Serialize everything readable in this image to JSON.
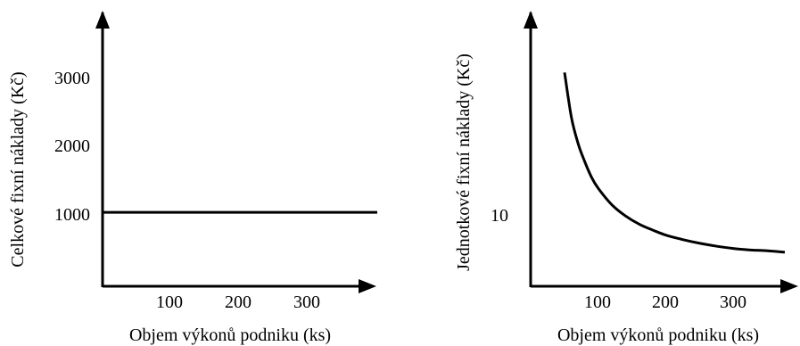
{
  "chart_data": [
    {
      "type": "line",
      "xlabel": "Objem výkonů podniku (ks)",
      "ylabel": "Celkové fixní náklady (Kč)",
      "x_ticks": [
        "100",
        "200",
        "300"
      ],
      "x_tick_values": [
        100,
        200,
        300
      ],
      "y_ticks": [
        "1000",
        "2000",
        "3000"
      ],
      "y_tick_values": [
        1000,
        2000,
        3000
      ],
      "xlim": [
        0,
        400
      ],
      "ylim": [
        0,
        3750
      ],
      "grid": false,
      "series": [
        {
          "x": [
            0,
            400
          ],
          "y": [
            1000,
            1000
          ]
        }
      ]
    },
    {
      "type": "line",
      "xlabel": "Objem výkonů podniku (ks)",
      "ylabel": "Jednotkové fixní náklady (Kč)",
      "x_ticks": [
        "100",
        "200",
        "300"
      ],
      "x_tick_values": [
        100,
        200,
        300
      ],
      "y_ticks": [
        "10"
      ],
      "y_tick_values": [
        10
      ],
      "xlim": [
        0,
        400
      ],
      "ylim": [
        0,
        37.5
      ],
      "grid": false,
      "series": [
        {
          "x": [
            50,
            60,
            70,
            80,
            90,
            100,
            120,
            140,
            160,
            180,
            200,
            225,
            250,
            275,
            300,
            325,
            350,
            375
          ],
          "y": [
            28.9,
            22.9,
            19.3,
            16.8,
            14.7,
            13.2,
            11.0,
            9.5,
            8.4,
            7.6,
            6.9,
            6.3,
            5.8,
            5.4,
            5.1,
            4.9,
            4.8,
            4.6
          ]
        }
      ]
    }
  ]
}
